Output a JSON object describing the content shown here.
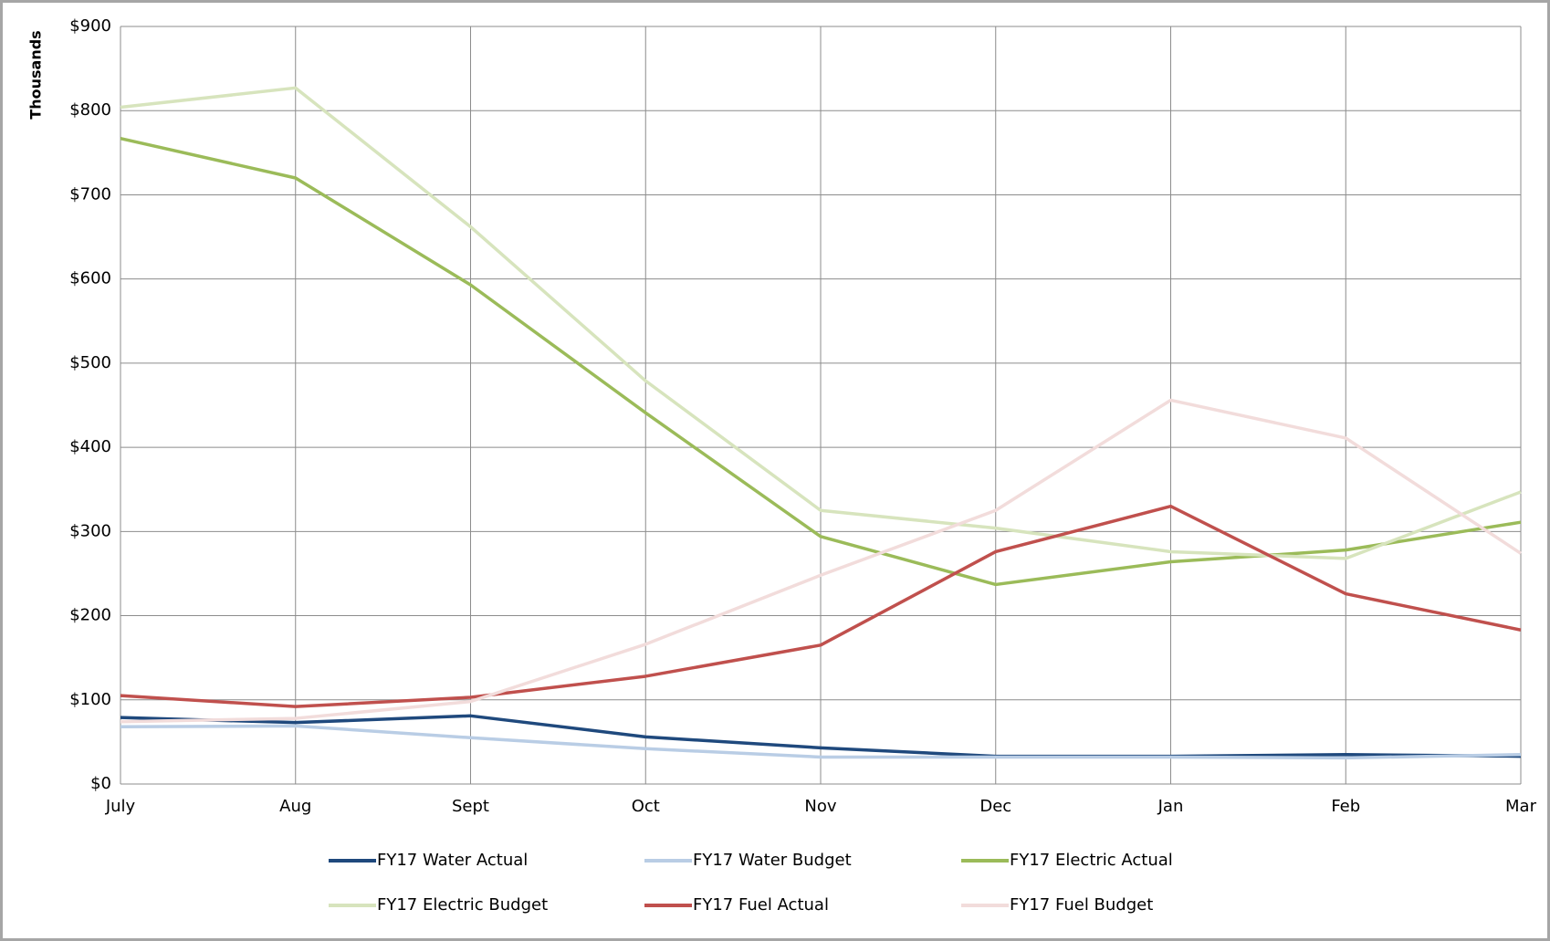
{
  "chart_data": {
    "type": "line",
    "y_axis_label": "Thousands",
    "categories": [
      "July",
      "Aug",
      "Sept",
      "Oct",
      "Nov",
      "Dec",
      "Jan",
      "Feb",
      "Mar"
    ],
    "ylim": [
      0,
      900
    ],
    "yticks": [
      {
        "value": 0,
        "label": "$0"
      },
      {
        "value": 100,
        "label": "$100"
      },
      {
        "value": 200,
        "label": "$200"
      },
      {
        "value": 300,
        "label": "$300"
      },
      {
        "value": 400,
        "label": "$400"
      },
      {
        "value": 500,
        "label": "$500"
      },
      {
        "value": 600,
        "label": "$600"
      },
      {
        "value": 700,
        "label": "$700"
      },
      {
        "value": 800,
        "label": "$800"
      },
      {
        "value": 900,
        "label": "$900"
      }
    ],
    "grid": true,
    "legend": "bottom",
    "series": [
      {
        "name": "FY17 Water Actual",
        "color": "#1f497d",
        "values": [
          79,
          73,
          81,
          56,
          43,
          33,
          33,
          35,
          33
        ]
      },
      {
        "name": "FY17 Water Budget",
        "color": "#b9cde5",
        "values": [
          68,
          69,
          55,
          42,
          32,
          32,
          32,
          31,
          35
        ]
      },
      {
        "name": "FY17 Electric Actual",
        "color": "#9bbb59",
        "values": [
          767,
          720,
          593,
          441,
          294,
          237,
          264,
          278,
          311
        ]
      },
      {
        "name": "FY17 Electric Budget",
        "color": "#d7e4bd",
        "values": [
          804,
          827,
          662,
          479,
          325,
          304,
          276,
          268,
          347
        ]
      },
      {
        "name": "FY17 Fuel Actual",
        "color": "#c0504d",
        "values": [
          105,
          92,
          103,
          128,
          165,
          276,
          330,
          226,
          183
        ]
      },
      {
        "name": "FY17 Fuel Budget",
        "color": "#f2dcdb",
        "values": [
          74,
          78,
          98,
          166,
          248,
          325,
          456,
          411,
          274
        ]
      }
    ]
  }
}
